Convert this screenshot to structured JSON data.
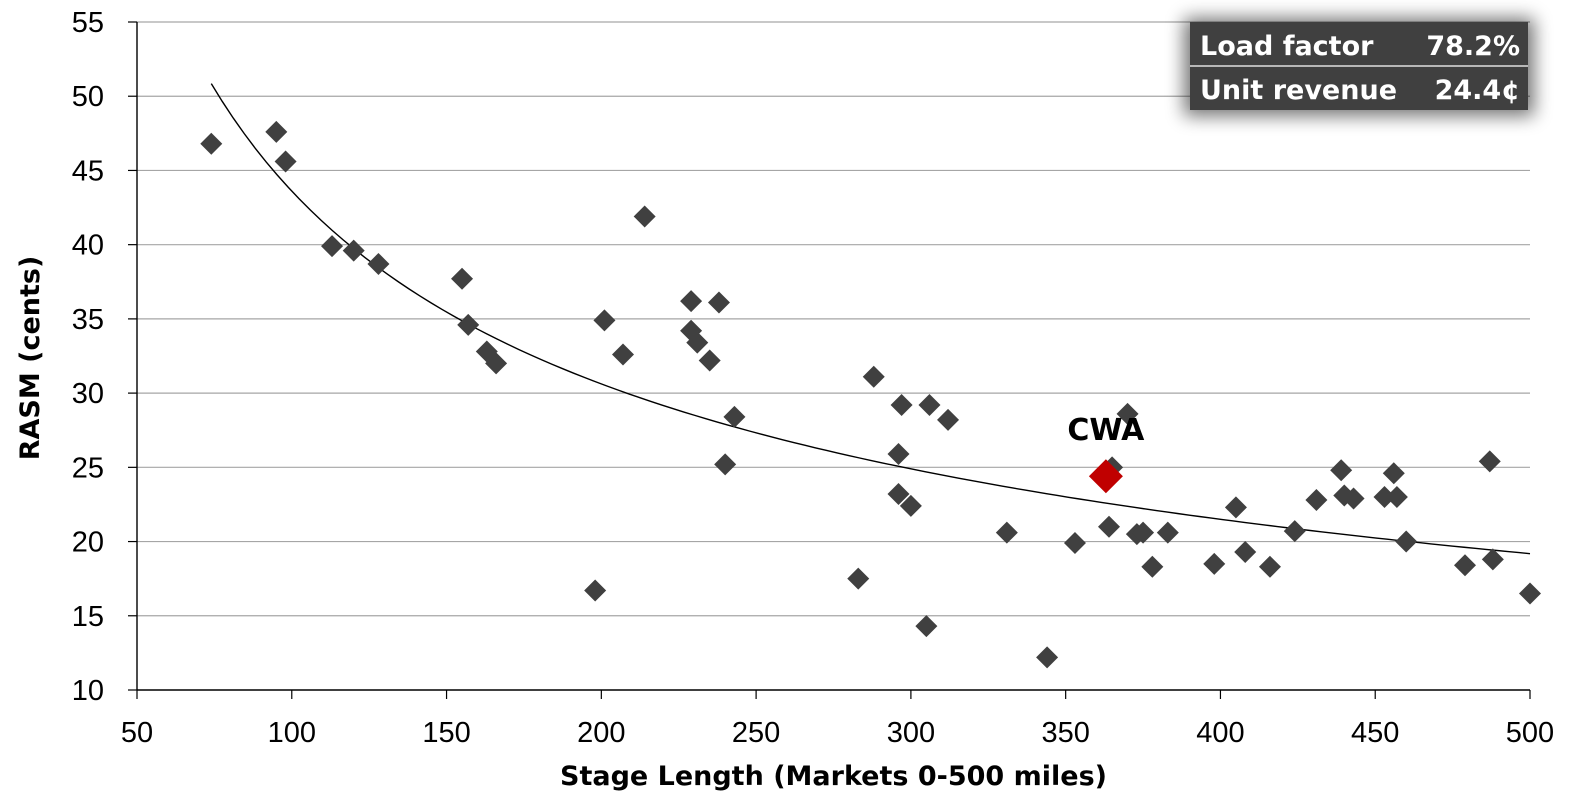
{
  "chart_data": {
    "type": "scatter",
    "title": "",
    "xlabel": "Stage Length (Markets 0-500 miles)",
    "ylabel": "RASM (cents)",
    "xlim": [
      50,
      500
    ],
    "ylim": [
      10,
      55
    ],
    "x_ticks": [
      "50",
      "100",
      "150",
      "200",
      "250",
      "300",
      "350",
      "400",
      "450",
      "500"
    ],
    "y_ticks": [
      "10",
      "15",
      "20",
      "25",
      "30",
      "35",
      "40",
      "45",
      "50",
      "55"
    ],
    "grid": "horizontal",
    "colors": {
      "points": "#404040",
      "highlight": "#c00000",
      "trendline": "#000000",
      "info_box": "#404040",
      "gridline": "#a6a6a6"
    },
    "points": [
      {
        "x": 74,
        "y": 46.8
      },
      {
        "x": 95,
        "y": 47.6
      },
      {
        "x": 98,
        "y": 45.6
      },
      {
        "x": 113,
        "y": 39.9
      },
      {
        "x": 120,
        "y": 39.6
      },
      {
        "x": 128,
        "y": 38.7
      },
      {
        "x": 155,
        "y": 37.7
      },
      {
        "x": 157,
        "y": 34.6
      },
      {
        "x": 163,
        "y": 32.8
      },
      {
        "x": 166,
        "y": 32.0
      },
      {
        "x": 198,
        "y": 16.7
      },
      {
        "x": 201,
        "y": 34.9
      },
      {
        "x": 207,
        "y": 32.6
      },
      {
        "x": 214,
        "y": 41.9
      },
      {
        "x": 229,
        "y": 36.2
      },
      {
        "x": 229,
        "y": 34.2
      },
      {
        "x": 231,
        "y": 33.4
      },
      {
        "x": 235,
        "y": 32.2
      },
      {
        "x": 238,
        "y": 36.1
      },
      {
        "x": 240,
        "y": 25.2
      },
      {
        "x": 243,
        "y": 28.4
      },
      {
        "x": 283,
        "y": 17.5
      },
      {
        "x": 288,
        "y": 31.1
      },
      {
        "x": 296,
        "y": 25.9
      },
      {
        "x": 296,
        "y": 23.2
      },
      {
        "x": 297,
        "y": 29.2
      },
      {
        "x": 300,
        "y": 22.4
      },
      {
        "x": 305,
        "y": 14.3
      },
      {
        "x": 306,
        "y": 29.2
      },
      {
        "x": 312,
        "y": 28.2
      },
      {
        "x": 331,
        "y": 20.6
      },
      {
        "x": 344,
        "y": 12.2
      },
      {
        "x": 353,
        "y": 19.9
      },
      {
        "x": 364,
        "y": 21.0
      },
      {
        "x": 365,
        "y": 25.0
      },
      {
        "x": 370,
        "y": 28.6
      },
      {
        "x": 373,
        "y": 20.5
      },
      {
        "x": 375,
        "y": 20.6
      },
      {
        "x": 378,
        "y": 18.3
      },
      {
        "x": 383,
        "y": 20.6
      },
      {
        "x": 398,
        "y": 18.5
      },
      {
        "x": 405,
        "y": 22.3
      },
      {
        "x": 408,
        "y": 19.3
      },
      {
        "x": 416,
        "y": 18.3
      },
      {
        "x": 424,
        "y": 20.7
      },
      {
        "x": 431,
        "y": 22.8
      },
      {
        "x": 439,
        "y": 24.8
      },
      {
        "x": 440,
        "y": 23.1
      },
      {
        "x": 443,
        "y": 22.9
      },
      {
        "x": 453,
        "y": 23.0
      },
      {
        "x": 456,
        "y": 24.6
      },
      {
        "x": 457,
        "y": 23.0
      },
      {
        "x": 460,
        "y": 20.0
      },
      {
        "x": 479,
        "y": 18.4
      },
      {
        "x": 487,
        "y": 25.4
      },
      {
        "x": 488,
        "y": 18.8
      },
      {
        "x": 500,
        "y": 16.5
      }
    ],
    "highlight": {
      "label": "CWA",
      "x": 363,
      "y": 24.4
    },
    "trendline": {
      "type": "power",
      "x_range": [
        74,
        500
      ]
    },
    "info_box": {
      "rows": [
        {
          "label": "Load factor",
          "value": "78.2%"
        },
        {
          "label": "Unit revenue",
          "value": "24.4¢"
        }
      ]
    }
  }
}
